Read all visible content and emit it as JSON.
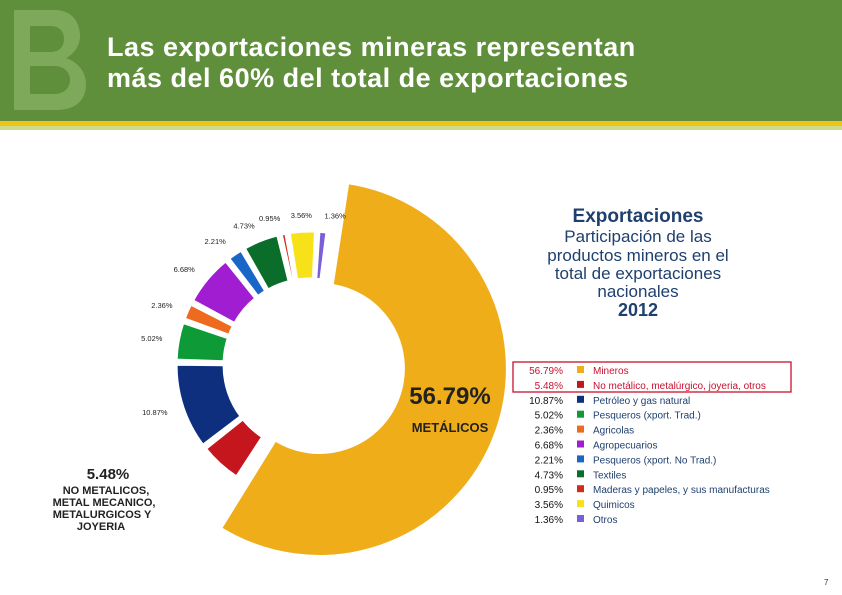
{
  "slide": {
    "title_line1": "Las exportaciones mineras representan",
    "title_line2": "más del 60% del total de exportaciones",
    "page_number": "7",
    "header_color": "#5f8f3a",
    "accent_color": "#f2c21a"
  },
  "chart_data": {
    "type": "pie",
    "style": "exploded-donut",
    "title_lines": [
      "Exportaciones",
      "Participación  de  las",
      "productos  mineros  en  el",
      "total  de  exportaciones",
      "nacionales"
    ],
    "year": "2012",
    "slices": [
      {
        "label": "Mineros",
        "value": 56.79,
        "value_text": "56.79%",
        "color": "#f0ad1a",
        "highlight": true
      },
      {
        "label": "No metálico, metalúrgico, joyeria, otros",
        "value": 5.48,
        "value_text": "5.48%",
        "color": "#c4161c",
        "highlight": true
      },
      {
        "label": "Petróleo y gas natural",
        "value": 10.87,
        "value_text": "10.87%",
        "color": "#0d2f7e",
        "highlight": false
      },
      {
        "label": "Pesqueros (xport. Trad.)",
        "value": 5.02,
        "value_text": "5.02%",
        "color": "#0f9a38",
        "highlight": false
      },
      {
        "label": "Agricolas",
        "value": 2.36,
        "value_text": "2.36%",
        "color": "#ee6a1f",
        "highlight": false
      },
      {
        "label": "Agropecuarios",
        "value": 6.68,
        "value_text": "6.68%",
        "color": "#a11dd1",
        "highlight": false
      },
      {
        "label": "Pesqueros (xport. No Trad.)",
        "value": 2.21,
        "value_text": "2.21%",
        "color": "#1a66c8",
        "highlight": false
      },
      {
        "label": "Textiles",
        "value": 4.73,
        "value_text": "4.73%",
        "color": "#0a6e2a",
        "highlight": false
      },
      {
        "label": "Maderas y papeles, y sus manufacturas",
        "value": 0.95,
        "value_text": "0.95%",
        "color": "#d22c1c",
        "highlight": false
      },
      {
        "label": "Quimicos",
        "value": 3.56,
        "value_text": "3.56%",
        "color": "#f7e21a",
        "highlight": false
      },
      {
        "label": "Otros",
        "value": 1.36,
        "value_text": "1.36%",
        "color": "#7a5fd8",
        "highlight": false
      }
    ],
    "callouts": {
      "metalicos_value": "56.79%",
      "metalicos_label": "METÁLICOS",
      "nometal_value": "5.48%",
      "nometal_lines": [
        "NO METALICOS,",
        "METAL MECANICO,",
        "METALURGICOS Y",
        "JOYERIA"
      ]
    }
  }
}
